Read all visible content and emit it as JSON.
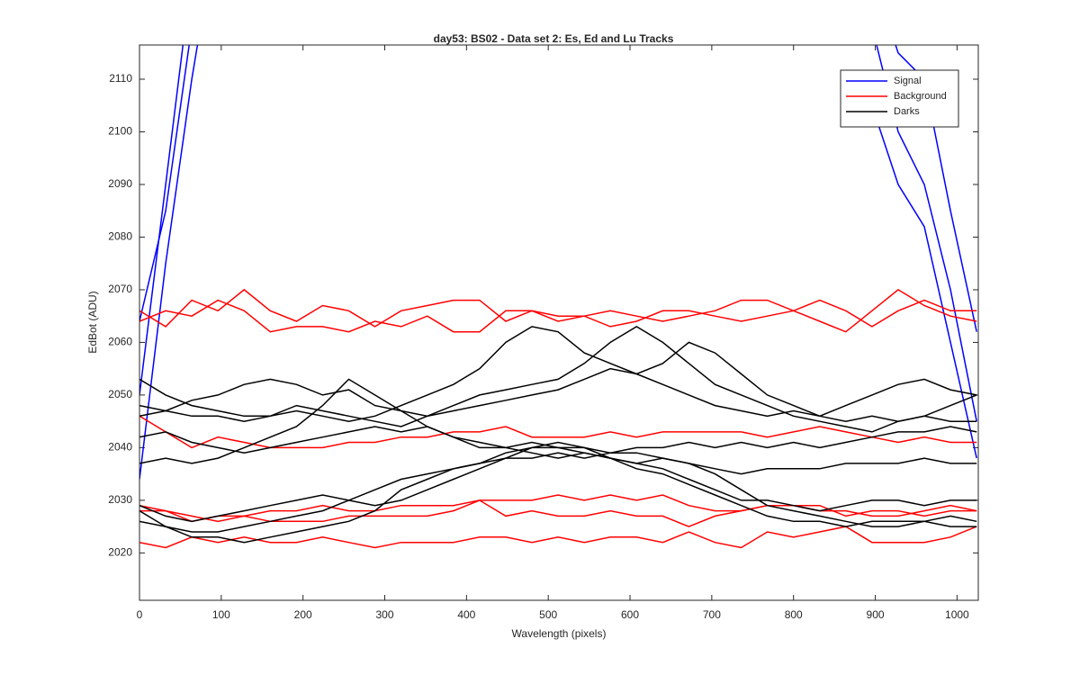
{
  "chart_data": {
    "type": "line",
    "title": "day53: BS02 - Data set 2: Es, Ed and Lu Tracks",
    "xlabel": "Wavelength (pixels)",
    "ylabel": "EdBot (ADU)",
    "x": [
      0,
      32,
      64,
      96,
      128,
      160,
      192,
      224,
      256,
      288,
      320,
      352,
      384,
      416,
      448,
      480,
      512,
      544,
      576,
      608,
      640,
      672,
      704,
      736,
      768,
      800,
      832,
      864,
      896,
      928,
      960,
      992,
      1024
    ],
    "xlim": [
      0,
      1026
    ],
    "ylim": [
      2011,
      2116.5
    ],
    "xticks": [
      0,
      100,
      200,
      300,
      400,
      500,
      600,
      700,
      800,
      900,
      1000
    ],
    "yticks": [
      2020,
      2030,
      2040,
      2050,
      2060,
      2070,
      2080,
      2090,
      2100,
      2110
    ],
    "legend": "upper right",
    "series": [
      {
        "name": "Signal",
        "color": "#0000ff",
        "lines": [
          [
            2034,
            2075,
            2110,
            2140,
            null,
            null,
            null,
            null,
            null,
            null,
            null,
            null,
            null,
            null,
            null,
            null,
            null,
            null,
            null,
            null,
            null,
            null,
            null,
            null,
            null,
            null,
            null,
            null,
            2105,
            2090,
            2082,
            2060,
            2038
          ],
          [
            2050,
            2090,
            2130,
            2160,
            null,
            null,
            null,
            null,
            null,
            null,
            null,
            null,
            null,
            null,
            null,
            null,
            null,
            null,
            null,
            null,
            null,
            null,
            null,
            null,
            null,
            null,
            null,
            null,
            2120,
            2100,
            2090,
            2070,
            2045
          ],
          [
            2064,
            2085,
            2120,
            2160,
            null,
            null,
            null,
            null,
            null,
            null,
            null,
            null,
            null,
            null,
            null,
            null,
            null,
            null,
            null,
            null,
            null,
            null,
            null,
            null,
            null,
            null,
            null,
            null,
            2130,
            2115,
            2110,
            2085,
            2062
          ]
        ]
      },
      {
        "name": "Background",
        "color": "#ff0000",
        "lines": [
          [
            2066,
            2063,
            2068,
            2066,
            2070,
            2066,
            2064,
            2067,
            2066,
            2063,
            2066,
            2067,
            2068,
            2068,
            2064,
            2066,
            2064,
            2065,
            2066,
            2065,
            2064,
            2065,
            2066,
            2068,
            2068,
            2066,
            2064,
            2062,
            2066,
            2070,
            2067,
            2065,
            2064
          ],
          [
            2064,
            2066,
            2065,
            2068,
            2066,
            2062,
            2063,
            2063,
            2062,
            2064,
            2063,
            2065,
            2062,
            2062,
            2066,
            2066,
            2065,
            2065,
            2063,
            2064,
            2066,
            2066,
            2065,
            2064,
            2065,
            2066,
            2068,
            2066,
            2063,
            2066,
            2068,
            2066,
            2066
          ],
          [
            2046,
            2043,
            2040,
            2042,
            2041,
            2040,
            2040,
            2040,
            2041,
            2041,
            2042,
            2042,
            2043,
            2043,
            2044,
            2042,
            2042,
            2042,
            2043,
            2042,
            2043,
            2043,
            2043,
            2043,
            2042,
            2043,
            2044,
            2043,
            2042,
            2041,
            2042,
            2041,
            2041
          ],
          [
            2029,
            2028,
            2026,
            2027,
            2027,
            2028,
            2028,
            2029,
            2028,
            2028,
            2029,
            2029,
            2029,
            2030,
            2030,
            2030,
            2031,
            2030,
            2031,
            2030,
            2031,
            2029,
            2028,
            2028,
            2029,
            2029,
            2029,
            2027,
            2028,
            2028,
            2027,
            2028,
            2028
          ],
          [
            2022,
            2021,
            2023,
            2022,
            2023,
            2022,
            2022,
            2023,
            2022,
            2021,
            2022,
            2022,
            2022,
            2023,
            2023,
            2022,
            2023,
            2022,
            2023,
            2023,
            2022,
            2024,
            2022,
            2021,
            2024,
            2023,
            2024,
            2025,
            2022,
            2022,
            2022,
            2023,
            2025
          ],
          [
            2028,
            2028,
            2027,
            2026,
            2027,
            2026,
            2026,
            2026,
            2027,
            2027,
            2027,
            2027,
            2028,
            2030,
            2027,
            2028,
            2027,
            2027,
            2028,
            2027,
            2027,
            2025,
            2027,
            2028,
            2029,
            2029,
            2028,
            2028,
            2027,
            2027,
            2028,
            2029,
            2028
          ]
        ]
      },
      {
        "name": "Darks",
        "color": "#000000",
        "lines": [
          [
            2053,
            2050,
            2048,
            2047,
            2046,
            2046,
            2047,
            2046,
            2045,
            2046,
            2048,
            2050,
            2052,
            2055,
            2060,
            2063,
            2062,
            2058,
            2056,
            2054,
            2052,
            2050,
            2048,
            2047,
            2046,
            2047,
            2046,
            2045,
            2046,
            2045,
            2046,
            2048,
            2050
          ],
          [
            2048,
            2047,
            2046,
            2046,
            2045,
            2046,
            2048,
            2047,
            2046,
            2045,
            2044,
            2046,
            2048,
            2050,
            2051,
            2052,
            2053,
            2056,
            2060,
            2063,
            2060,
            2056,
            2052,
            2050,
            2048,
            2046,
            2045,
            2044,
            2043,
            2045,
            2046,
            2045,
            2045
          ],
          [
            2046,
            2047,
            2049,
            2050,
            2052,
            2053,
            2052,
            2050,
            2051,
            2048,
            2047,
            2046,
            2047,
            2048,
            2049,
            2050,
            2051,
            2053,
            2055,
            2054,
            2056,
            2060,
            2058,
            2054,
            2050,
            2048,
            2046,
            2048,
            2050,
            2052,
            2053,
            2051,
            2050
          ],
          [
            2037,
            2038,
            2037,
            2038,
            2040,
            2042,
            2044,
            2048,
            2053,
            2050,
            2047,
            2044,
            2042,
            2040,
            2040,
            2039,
            2038,
            2039,
            2038,
            2037,
            2038,
            2037,
            2036,
            2035,
            2036,
            2036,
            2036,
            2037,
            2037,
            2037,
            2038,
            2037,
            2037
          ],
          [
            2029,
            2027,
            2026,
            2027,
            2028,
            2029,
            2030,
            2031,
            2030,
            2029,
            2030,
            2032,
            2034,
            2036,
            2038,
            2040,
            2040,
            2039,
            2038,
            2037,
            2036,
            2034,
            2032,
            2030,
            2030,
            2029,
            2028,
            2029,
            2030,
            2030,
            2029,
            2030,
            2030
          ],
          [
            2026,
            2025,
            2024,
            2024,
            2025,
            2026,
            2027,
            2028,
            2030,
            2032,
            2034,
            2035,
            2036,
            2037,
            2039,
            2040,
            2041,
            2040,
            2038,
            2036,
            2035,
            2033,
            2031,
            2029,
            2027,
            2026,
            2026,
            2025,
            2026,
            2026,
            2026,
            2025,
            2025
          ],
          [
            2028,
            2025,
            2023,
            2023,
            2022,
            2023,
            2024,
            2025,
            2026,
            2028,
            2032,
            2034,
            2036,
            2037,
            2038,
            2038,
            2039,
            2038,
            2039,
            2039,
            2038,
            2037,
            2035,
            2032,
            2029,
            2028,
            2027,
            2026,
            2025,
            2025,
            2026,
            2027,
            2026
          ],
          [
            2042,
            2043,
            2041,
            2040,
            2039,
            2040,
            2041,
            2042,
            2043,
            2044,
            2043,
            2044,
            2042,
            2041,
            2040,
            2041,
            2040,
            2040,
            2039,
            2040,
            2040,
            2041,
            2040,
            2041,
            2040,
            2041,
            2040,
            2041,
            2042,
            2043,
            2043,
            2044,
            2043
          ]
        ]
      }
    ]
  }
}
